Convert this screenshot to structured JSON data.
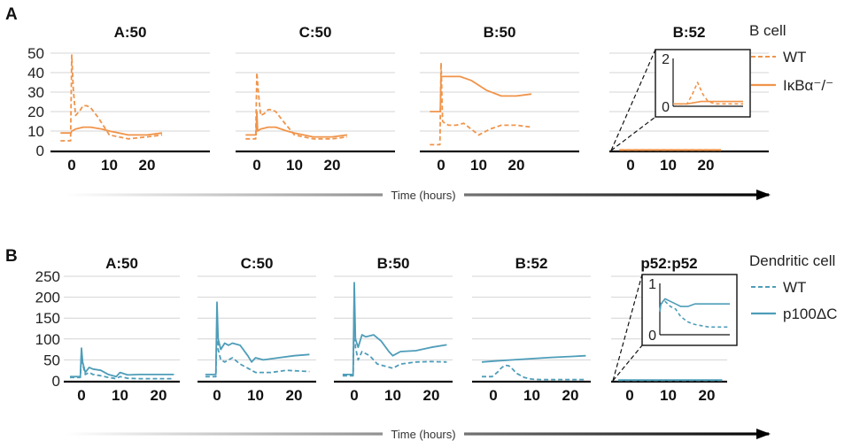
{
  "colors": {
    "orange": "#F0944A",
    "blue": "#4E9DB9",
    "grid": "#D4D4D4",
    "axis": "#111111"
  },
  "time_axis_label": "Time (hours)",
  "chart_data": [
    {
      "panel": "A",
      "type": "line",
      "cell_type": "B cell",
      "legend": [
        "WT",
        "IκBα⁻/⁻"
      ],
      "x_ticks": [
        "0",
        "10",
        "20"
      ],
      "y_ticks": [
        "0",
        "10",
        "20",
        "30",
        "40",
        "50"
      ],
      "ylim": [
        0,
        50
      ],
      "grid": true,
      "line_styles": {
        "WT": "dashed",
        "IκBα⁻/⁻": "solid"
      },
      "subplots": [
        {
          "title": "A:50",
          "series": [
            {
              "name": "WT",
              "x": [
                -3,
                -0.3,
                0,
                0.4,
                1,
                2,
                3,
                4,
                5,
                7,
                10,
                15,
                20,
                24
              ],
              "y": [
                5,
                5,
                49,
                32,
                18,
                20,
                23,
                23,
                22,
                17,
                8,
                6,
                7,
                8
              ]
            },
            {
              "name": "IκBα⁻/⁻",
              "x": [
                -3,
                -0.2,
                0,
                1,
                3,
                5,
                8,
                10,
                15,
                20,
                24
              ],
              "y": [
                9,
                9,
                10,
                11,
                12,
                12,
                11,
                10,
                8,
                8,
                9
              ]
            }
          ]
        },
        {
          "title": "C:50",
          "series": [
            {
              "name": "WT",
              "x": [
                -3,
                -0.3,
                0,
                0.4,
                1,
                2,
                3,
                4,
                5,
                7,
                10,
                15,
                20,
                24
              ],
              "y": [
                6,
                6,
                40,
                30,
                18,
                19,
                21,
                21,
                20,
                15,
                8,
                6,
                6,
                7
              ]
            },
            {
              "name": "IκBα⁻/⁻",
              "x": [
                -3,
                -0.2,
                0,
                0.2,
                1,
                3,
                5,
                8,
                10,
                15,
                20,
                24
              ],
              "y": [
                8,
                8,
                20,
                10,
                11,
                12,
                12,
                10,
                9,
                7,
                7,
                8
              ]
            }
          ]
        },
        {
          "title": "B:50",
          "series": [
            {
              "name": "WT",
              "x": [
                -3,
                -0.3,
                0,
                0.4,
                1,
                2,
                4,
                6,
                8,
                10,
                13,
                16,
                20,
                24
              ],
              "y": [
                3,
                3,
                45,
                15,
                14,
                13,
                13,
                14,
                11,
                8,
                11,
                13,
                13,
                12
              ]
            },
            {
              "name": "IκBα⁻/⁻",
              "x": [
                -3,
                -0.2,
                0,
                0.5,
                2,
                5,
                8,
                12,
                16,
                20,
                24
              ],
              "y": [
                20,
                20,
                38,
                38,
                38,
                38,
                36,
                31,
                28,
                28,
                29
              ]
            }
          ]
        },
        {
          "title": "B:52",
          "series": [
            {
              "name": "WT",
              "x": [
                -3,
                0,
                24
              ],
              "y": [
                0.3,
                0.3,
                0.3
              ]
            },
            {
              "name": "IκBα⁻/⁻",
              "x": [
                -3,
                0,
                24
              ],
              "y": [
                0.3,
                0.3,
                0.3
              ]
            }
          ],
          "inset": {
            "y_ticks": [
              "0",
              "2"
            ],
            "ylim": [
              0,
              2
            ],
            "series": [
              {
                "name": "WT",
                "x": [
                  0,
                  4,
                  5.5,
                  7,
                  8.5,
                  10,
                  12,
                  20
                ],
                "y": [
                  0.1,
                  0.1,
                  0.5,
                  1.0,
                  0.5,
                  0.2,
                  0.1,
                  0.1
                ]
              },
              {
                "name": "IκBα⁻/⁻",
                "x": [
                  0,
                  4,
                  8,
                  12,
                  20
                ],
                "y": [
                  0.1,
                  0.1,
                  0.2,
                  0.2,
                  0.2
                ]
              }
            ]
          }
        }
      ]
    },
    {
      "panel": "B",
      "type": "line",
      "cell_type": "Dendritic cell",
      "legend": [
        "WT",
        "p100ΔC"
      ],
      "x_ticks": [
        "0",
        "10",
        "20"
      ],
      "y_ticks": [
        "0",
        "50",
        "100",
        "150",
        "200",
        "250"
      ],
      "ylim": [
        0,
        250
      ],
      "grid": true,
      "line_styles": {
        "WT": "dashed",
        "p100ΔC": "solid"
      },
      "subplots": [
        {
          "title": "A:50",
          "series": [
            {
              "name": "WT",
              "x": [
                -3,
                -0.3,
                0,
                0.3,
                1,
                2,
                3,
                5,
                7,
                9,
                10,
                12,
                15,
                24
              ],
              "y": [
                8,
                8,
                68,
                40,
                15,
                20,
                15,
                12,
                8,
                5,
                10,
                6,
                5,
                5
              ]
            },
            {
              "name": "p100ΔC",
              "x": [
                -3,
                -0.3,
                0,
                0.3,
                1,
                2,
                3,
                5,
                7,
                9,
                10,
                12,
                15,
                24
              ],
              "y": [
                10,
                10,
                78,
                45,
                20,
                32,
                28,
                25,
                15,
                10,
                20,
                14,
                15,
                15
              ]
            }
          ]
        },
        {
          "title": "C:50",
          "series": [
            {
              "name": "WT",
              "x": [
                -3,
                -0.3,
                0,
                0.3,
                1,
                2,
                4,
                6,
                8,
                10,
                14,
                18,
                24
              ],
              "y": [
                10,
                10,
                150,
                75,
                50,
                45,
                55,
                40,
                30,
                20,
                20,
                25,
                22
              ]
            },
            {
              "name": "p100ΔC",
              "x": [
                -3,
                -0.3,
                0,
                0.3,
                1,
                2,
                3,
                4,
                6,
                8,
                9,
                10,
                12,
                16,
                20,
                24
              ],
              "y": [
                15,
                15,
                188,
                100,
                75,
                90,
                85,
                90,
                85,
                60,
                45,
                55,
                50,
                55,
                60,
                63
              ]
            }
          ]
        },
        {
          "title": "B:50",
          "series": [
            {
              "name": "WT",
              "x": [
                -3,
                -0.3,
                0,
                0.3,
                1,
                2,
                4,
                6,
                8,
                10,
                12,
                16,
                20,
                24
              ],
              "y": [
                12,
                12,
                190,
                80,
                50,
                70,
                60,
                40,
                35,
                30,
                40,
                45,
                46,
                45
              ]
            },
            {
              "name": "p100ΔC",
              "x": [
                -3,
                -0.3,
                0,
                0.3,
                1,
                2,
                3,
                5,
                7,
                9,
                10,
                12,
                16,
                20,
                24
              ],
              "y": [
                15,
                15,
                235,
                100,
                80,
                110,
                105,
                110,
                95,
                70,
                60,
                70,
                72,
                80,
                86
              ]
            }
          ]
        },
        {
          "title": "B:52",
          "series": [
            {
              "name": "WT",
              "x": [
                -3,
                -0.3,
                0,
                1,
                2,
                3,
                4,
                5,
                6,
                8,
                10,
                12,
                16,
                20,
                24
              ],
              "y": [
                10,
                10,
                12,
                20,
                30,
                37,
                36,
                28,
                18,
                8,
                4,
                3,
                3,
                3,
                3
              ]
            },
            {
              "name": "p100ΔC",
              "x": [
                -3,
                0,
                5,
                10,
                15,
                20,
                24
              ],
              "y": [
                45,
                47,
                50,
                53,
                56,
                58,
                60
              ]
            }
          ]
        },
        {
          "title": "p52:p52",
          "series": [
            {
              "name": "WT",
              "x": [
                -3,
                0,
                24
              ],
              "y": [
                1,
                1,
                1
              ]
            },
            {
              "name": "p100ΔC",
              "x": [
                -3,
                0,
                24
              ],
              "y": [
                2,
                2,
                2
              ]
            }
          ],
          "inset": {
            "y_ticks": [
              "0",
              "1"
            ],
            "ylim": [
              0,
              1
            ],
            "series": [
              {
                "name": "WT",
                "x": [
                  0,
                  0.3,
                  1.5,
                  3,
                  4.5,
                  6,
                  8,
                  10,
                  14,
                  20
                ],
                "y": [
                  0.45,
                  0.6,
                  0.65,
                  0.55,
                  0.5,
                  0.35,
                  0.25,
                  0.2,
                  0.15,
                  0.15
                ]
              },
              {
                "name": "p100ΔC",
                "x": [
                  0,
                  0.3,
                  1.5,
                  3,
                  4.5,
                  6,
                  8,
                  10,
                  14,
                  20
                ],
                "y": [
                  0.45,
                  0.6,
                  0.7,
                  0.65,
                  0.6,
                  0.55,
                  0.55,
                  0.6,
                  0.6,
                  0.6
                ]
              }
            ]
          }
        }
      ]
    }
  ]
}
